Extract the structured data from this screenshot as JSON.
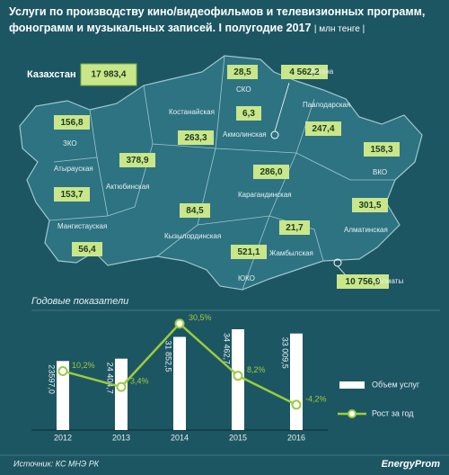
{
  "header": {
    "title": "Услуги по производству кино/видеофильмов и телевизионных программ, фонограмм и музыкальных записей. I полугодие 2017",
    "unit": "| млн тенге |"
  },
  "map": {
    "total": {
      "name": "Казахстан",
      "value": "17 983,4"
    },
    "regions": [
      {
        "name": "СКО",
        "value": "28,5"
      },
      {
        "name": "Астана",
        "value": "4 562,2"
      },
      {
        "name": "Костанайская",
        "value": "263,3"
      },
      {
        "name": "Акмолинская",
        "value": "6,3"
      },
      {
        "name": "Павлодарская",
        "value": "247,4"
      },
      {
        "name": "ЗКО",
        "value": "156,8"
      },
      {
        "name": "Атырауская",
        "value": "153,7"
      },
      {
        "name": "Актюбинская",
        "value": "378,9"
      },
      {
        "name": "ВКО",
        "value": "158,3"
      },
      {
        "name": "Карагандинская",
        "value": "286,0"
      },
      {
        "name": "Мангистауская",
        "value": "56,4"
      },
      {
        "name": "Кызылординская",
        "value": "84,5"
      },
      {
        "name": "Алматинская",
        "value": "301,5"
      },
      {
        "name": "Жамбылская",
        "value": "21,7"
      },
      {
        "name": "ЮКО",
        "value": "521,1"
      },
      {
        "name": "Алматы",
        "value": "10 756,9"
      }
    ]
  },
  "chart_data": {
    "type": "bar-line",
    "title": "Годовые показатели",
    "categories": [
      "2012",
      "2013",
      "2014",
      "2015",
      "2016"
    ],
    "series": [
      {
        "name": "Объем услуг",
        "type": "bar",
        "color": "#ffffff",
        "values": [
          23597.0,
          24404.7,
          31852.5,
          34462.7,
          33009.5
        ],
        "value_labels": [
          "23597,0",
          "24 404,7",
          "31 852,5",
          "34 462,7",
          "33 009,5"
        ]
      },
      {
        "name": "Рост за год",
        "type": "line",
        "axis": "y2",
        "color": "#9ccc3c",
        "values": [
          10.2,
          3.4,
          30.5,
          8.2,
          -4.2
        ],
        "value_labels": [
          "10,2%",
          "3,4%",
          "30,5%",
          "8,2%",
          "-4,2%"
        ]
      }
    ],
    "ylim": [
      0,
      60000
    ],
    "y2lim": [
      -15,
      60
    ]
  },
  "footer": {
    "source": "Источник: КС МНЭ РК",
    "logo": "EnergyProm"
  }
}
